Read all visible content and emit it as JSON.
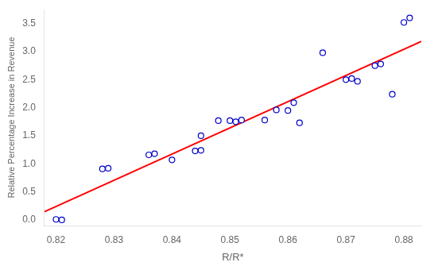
{
  "chart_data": {
    "type": "scatter",
    "xlabel": "R/R*",
    "ylabel": "Relative Percentage Increase in Revenue",
    "xlim": [
      0.818,
      0.883
    ],
    "ylim": [
      -0.1,
      3.75
    ],
    "xticks": [
      0.82,
      0.83,
      0.84,
      0.85,
      0.86,
      0.87,
      0.88
    ],
    "yticks": [
      {
        "value": 0.0,
        "label": "0.0"
      },
      0.5,
      {
        "value": 1.0,
        "label": "1.0"
      },
      1.5,
      {
        "value": 2.0,
        "label": "2.0"
      },
      2.5,
      {
        "value": 3.0,
        "label": "3.0"
      },
      3.5
    ],
    "grid": false,
    "series": [
      {
        "type": "scatter",
        "color": "#0000cc",
        "marker": "circle",
        "x": [
          0.82,
          0.821,
          0.828,
          0.829,
          0.836,
          0.837,
          0.84,
          0.844,
          0.845,
          0.845,
          0.848,
          0.85,
          0.851,
          0.852,
          0.856,
          0.858,
          0.86,
          0.861,
          0.862,
          0.866,
          0.87,
          0.871,
          0.872,
          0.875,
          0.876,
          0.878,
          0.88,
          0.881
        ],
        "values": [
          0.01,
          0.0,
          0.91,
          0.92,
          1.16,
          1.18,
          1.07,
          1.23,
          1.24,
          1.5,
          1.77,
          1.77,
          1.75,
          1.78,
          1.78,
          1.96,
          1.95,
          2.09,
          1.73,
          2.98,
          2.5,
          2.52,
          2.47,
          2.75,
          2.78,
          2.24,
          3.52,
          3.6
        ]
      },
      {
        "type": "line",
        "color": "red",
        "line_style": "solid",
        "x": [
          0.818,
          0.883
        ],
        "values": [
          0.14565,
          3.18168
        ]
      }
    ]
  }
}
